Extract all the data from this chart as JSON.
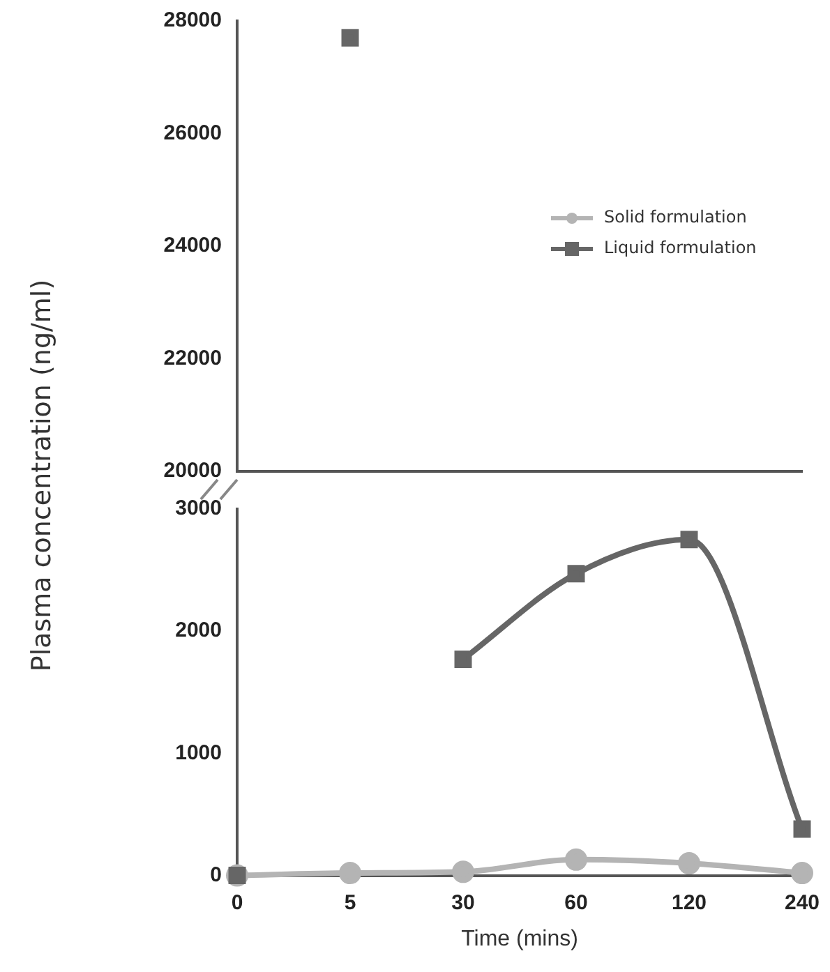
{
  "chart_data": [
    {
      "type": "line",
      "ylabel": "Plasma concentration (ng/ml)",
      "categories": [
        "0",
        "5",
        "30",
        "60",
        "120",
        "240"
      ],
      "ylim": [
        20000,
        28000
      ],
      "yticks": [
        20000,
        22000,
        24000,
        26000,
        28000
      ],
      "tick_labels": "y",
      "grid": false,
      "legend": "right",
      "series": [
        {
          "name": "Solid formulation",
          "color": "#b4b4b4",
          "marker": "circle",
          "values": [
            null,
            null,
            null,
            null,
            null,
            null
          ]
        },
        {
          "name": "Liquid formulation",
          "color": "#666666",
          "marker": "square",
          "values": [
            null,
            27700,
            null,
            null,
            null,
            null
          ]
        }
      ]
    },
    {
      "type": "line",
      "xlabel": "Time (mins)",
      "categories": [
        "0",
        "5",
        "30",
        "60",
        "120",
        "240"
      ],
      "ylim": [
        0,
        3000
      ],
      "yticks": [
        0,
        1000,
        2000,
        3000
      ],
      "grid": false,
      "legend": false,
      "series": [
        {
          "color": "#b4b4b4",
          "marker": "circle",
          "values": [
            0,
            20,
            30,
            130,
            100,
            20
          ]
        },
        {
          "color": "#666666",
          "marker": "square",
          "values": [
            0,
            null,
            1770,
            2470,
            2750,
            380
          ]
        }
      ]
    }
  ]
}
